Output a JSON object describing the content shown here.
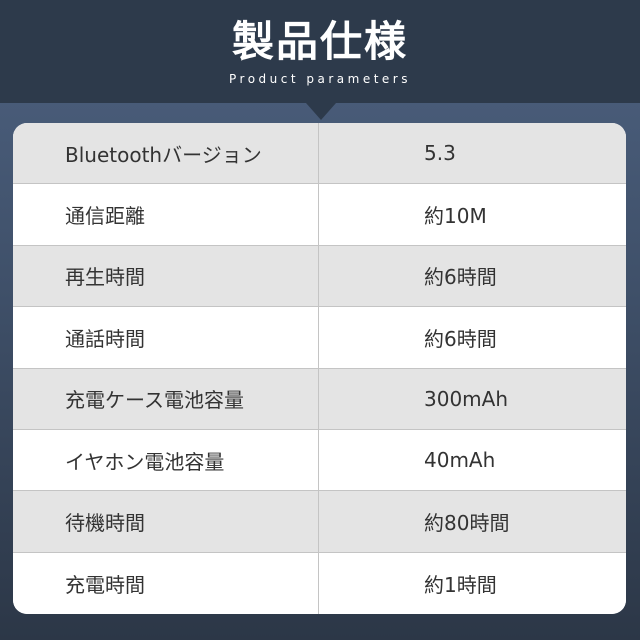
{
  "header": {
    "title": "製品仕様",
    "subtitle": "Product parameters"
  },
  "specs": [
    {
      "label": "Bluetoothバージョン",
      "value": "5.3"
    },
    {
      "label": "通信距離",
      "value": "約10M"
    },
    {
      "label": "再生時間",
      "value": "約6時間"
    },
    {
      "label": "通話時間",
      "value": "約6時間"
    },
    {
      "label": "充電ケース電池容量",
      "value": "300mAh"
    },
    {
      "label": "イヤホン電池容量",
      "value": "40mAh"
    },
    {
      "label": "待機時間",
      "value": "約80時間"
    },
    {
      "label": "充電時間",
      "value": "約1時間"
    }
  ]
}
